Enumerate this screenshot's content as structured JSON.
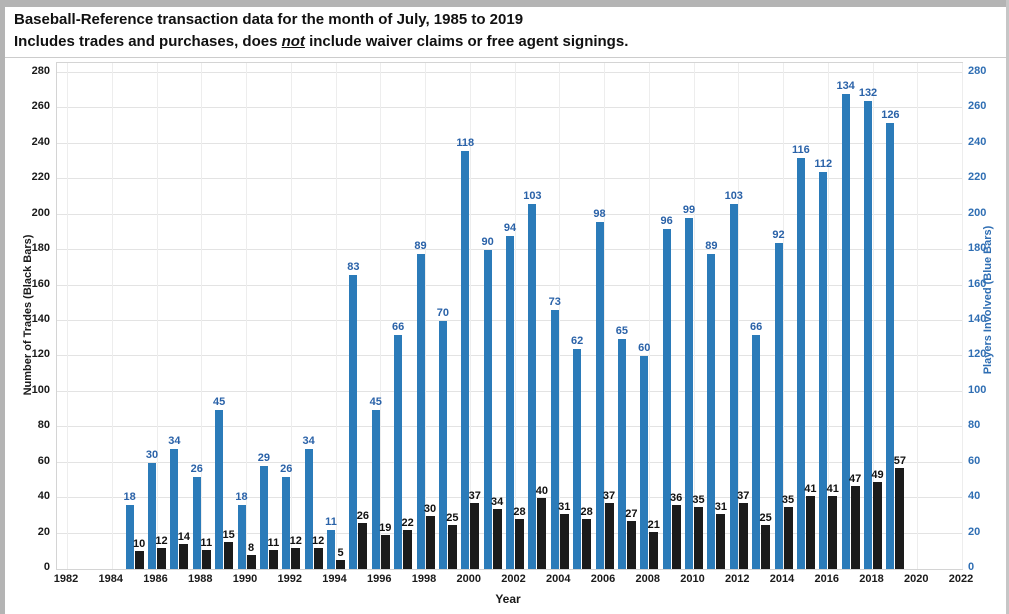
{
  "header": {
    "title": "Baseball-Reference transaction data for the month of July, 1985 to 2019",
    "subtitle_prefix": "Includes trades and purchases, does ",
    "subtitle_emphasis": "not",
    "subtitle_suffix": " include waiver claims or free agent signings."
  },
  "chart_data": {
    "type": "bar",
    "title": "Baseball-Reference transaction data for the month of July, 1985 to 2019",
    "subtitle": "Includes trades and purchases, does not include waiver claims or free agent signings.",
    "categories": [
      1985,
      1986,
      1987,
      1988,
      1989,
      1990,
      1991,
      1992,
      1993,
      1994,
      1995,
      1996,
      1997,
      1998,
      1999,
      2000,
      2001,
      2002,
      2003,
      2004,
      2005,
      2006,
      2007,
      2008,
      2009,
      2010,
      2011,
      2012,
      2013,
      2014,
      2015,
      2016,
      2017,
      2018,
      2019
    ],
    "series": [
      {
        "name": "Number of Trades (Black Bars)",
        "color": "#1b1b1b",
        "values": [
          10,
          12,
          14,
          11,
          15,
          8,
          11,
          12,
          12,
          5,
          26,
          19,
          22,
          30,
          25,
          37,
          34,
          28,
          40,
          31,
          28,
          37,
          27,
          21,
          36,
          35,
          31,
          37,
          25,
          35,
          41,
          41,
          47,
          49,
          57
        ]
      },
      {
        "name": "Players Involved (Blue Bars)",
        "color": "#2b7bb9",
        "values": [
          18,
          30,
          34,
          26,
          45,
          18,
          29,
          26,
          34,
          11,
          83,
          45,
          66,
          89,
          70,
          118,
          90,
          94,
          103,
          73,
          62,
          98,
          65,
          60,
          96,
          99,
          89,
          103,
          66,
          92,
          116,
          112,
          134,
          132,
          126
        ]
      }
    ],
    "xlabel": "Year",
    "ylabel_left": "Number of Trades (Black Bars)",
    "ylabel_right": "Players Involved (Blue Bars)",
    "x_ticks": [
      1982,
      1984,
      1986,
      1988,
      1990,
      1992,
      1994,
      1996,
      1998,
      2000,
      2002,
      2004,
      2006,
      2008,
      2010,
      2012,
      2014,
      2016,
      2018,
      2020,
      2022
    ],
    "y_ticks": [
      0,
      20,
      40,
      60,
      80,
      100,
      120,
      140,
      160,
      180,
      200,
      220,
      240,
      260,
      280
    ],
    "ylim": [
      0,
      280
    ],
    "xlim": [
      1981.3,
      2022
    ],
    "grid": true,
    "legend_position": "none",
    "data_labels": true,
    "layout_hints": {
      "blue_bars_plotted_at_double_value_on_shared_axis": true,
      "left_axis_text_color": "#1a1a1a",
      "right_axis_text_color": "#2f6eb3",
      "blue_label_color": "#2a62a8",
      "black_label_color": "#111111"
    }
  }
}
